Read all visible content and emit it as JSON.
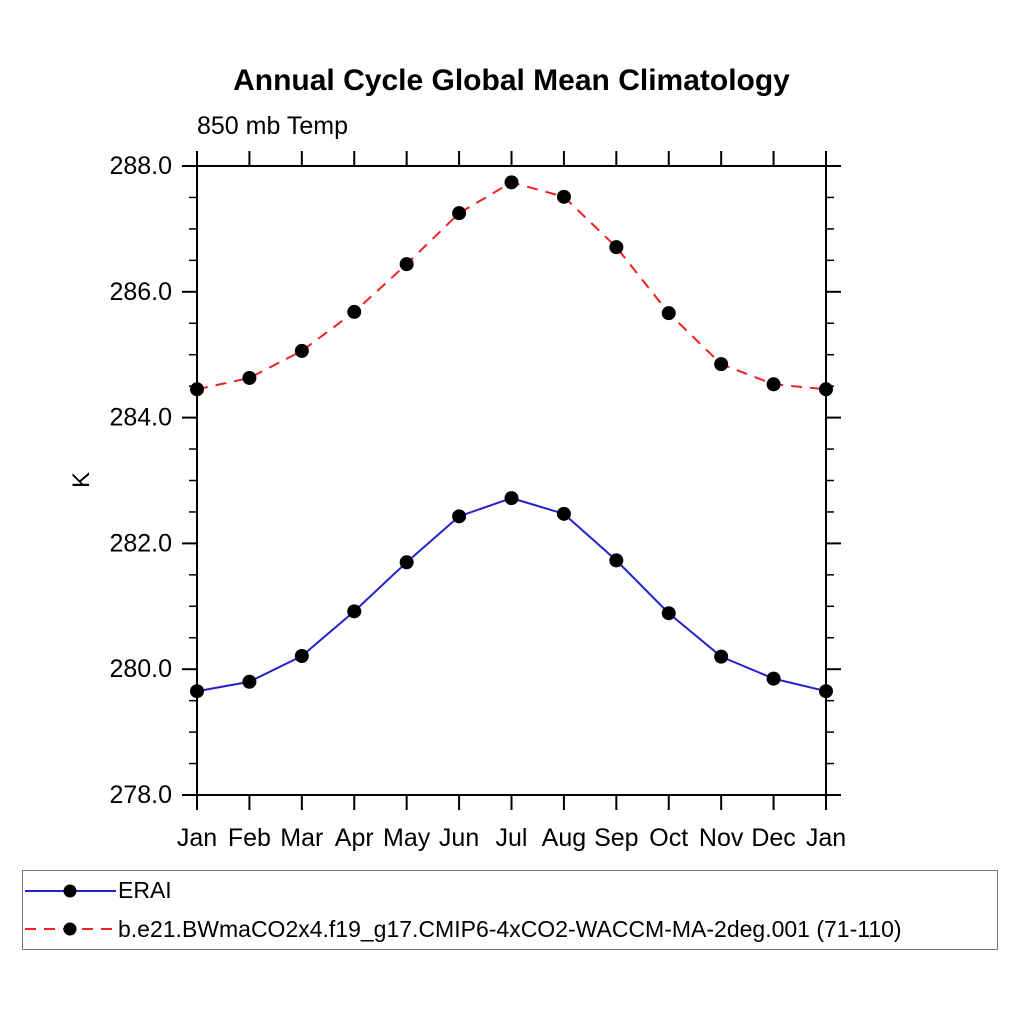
{
  "page": {
    "title": "Annual Cycle Global Mean Climatology",
    "subtitle": "850 mb Temp"
  },
  "chart_data": {
    "type": "line",
    "title": "Annual Cycle Global Mean Climatology",
    "subtitle": "850 mb Temp",
    "xlabel": "",
    "ylabel": "K",
    "x_labels": [
      "Jan",
      "Feb",
      "Mar",
      "Apr",
      "May",
      "Jun",
      "Jul",
      "Aug",
      "Sep",
      "Oct",
      "Nov",
      "Dec",
      "Jan"
    ],
    "ylim": [
      278.0,
      288.0
    ],
    "y_major_ticks": [
      278.0,
      280.0,
      282.0,
      284.0,
      286.0,
      288.0
    ],
    "y_tick_labels": [
      "278.0",
      "280.0",
      "282.0",
      "284.0",
      "286.0",
      "288.0"
    ],
    "y_minor_step": 0.5,
    "grid": false,
    "legend_position": "bottom-left-box",
    "axis_color": "#000000",
    "marker": "filled-circle",
    "marker_color": "#000000",
    "series": [
      {
        "name": "ERAI",
        "color": "#2222cc",
        "style": "solid",
        "values": [
          279.65,
          279.8,
          280.21,
          280.92,
          281.7,
          282.43,
          282.72,
          282.47,
          281.73,
          280.89,
          280.2,
          279.85,
          279.65
        ]
      },
      {
        "name": "b.e21.BWmaCO2x4.f19_g17.CMIP6-4xCO2-WACCM-MA-2deg.001 (71-110)",
        "color": "#ee2222",
        "style": "dashed",
        "values": [
          284.45,
          284.63,
          285.06,
          285.68,
          286.44,
          287.25,
          287.74,
          287.51,
          286.71,
          285.66,
          284.85,
          284.53,
          284.45
        ]
      }
    ]
  }
}
